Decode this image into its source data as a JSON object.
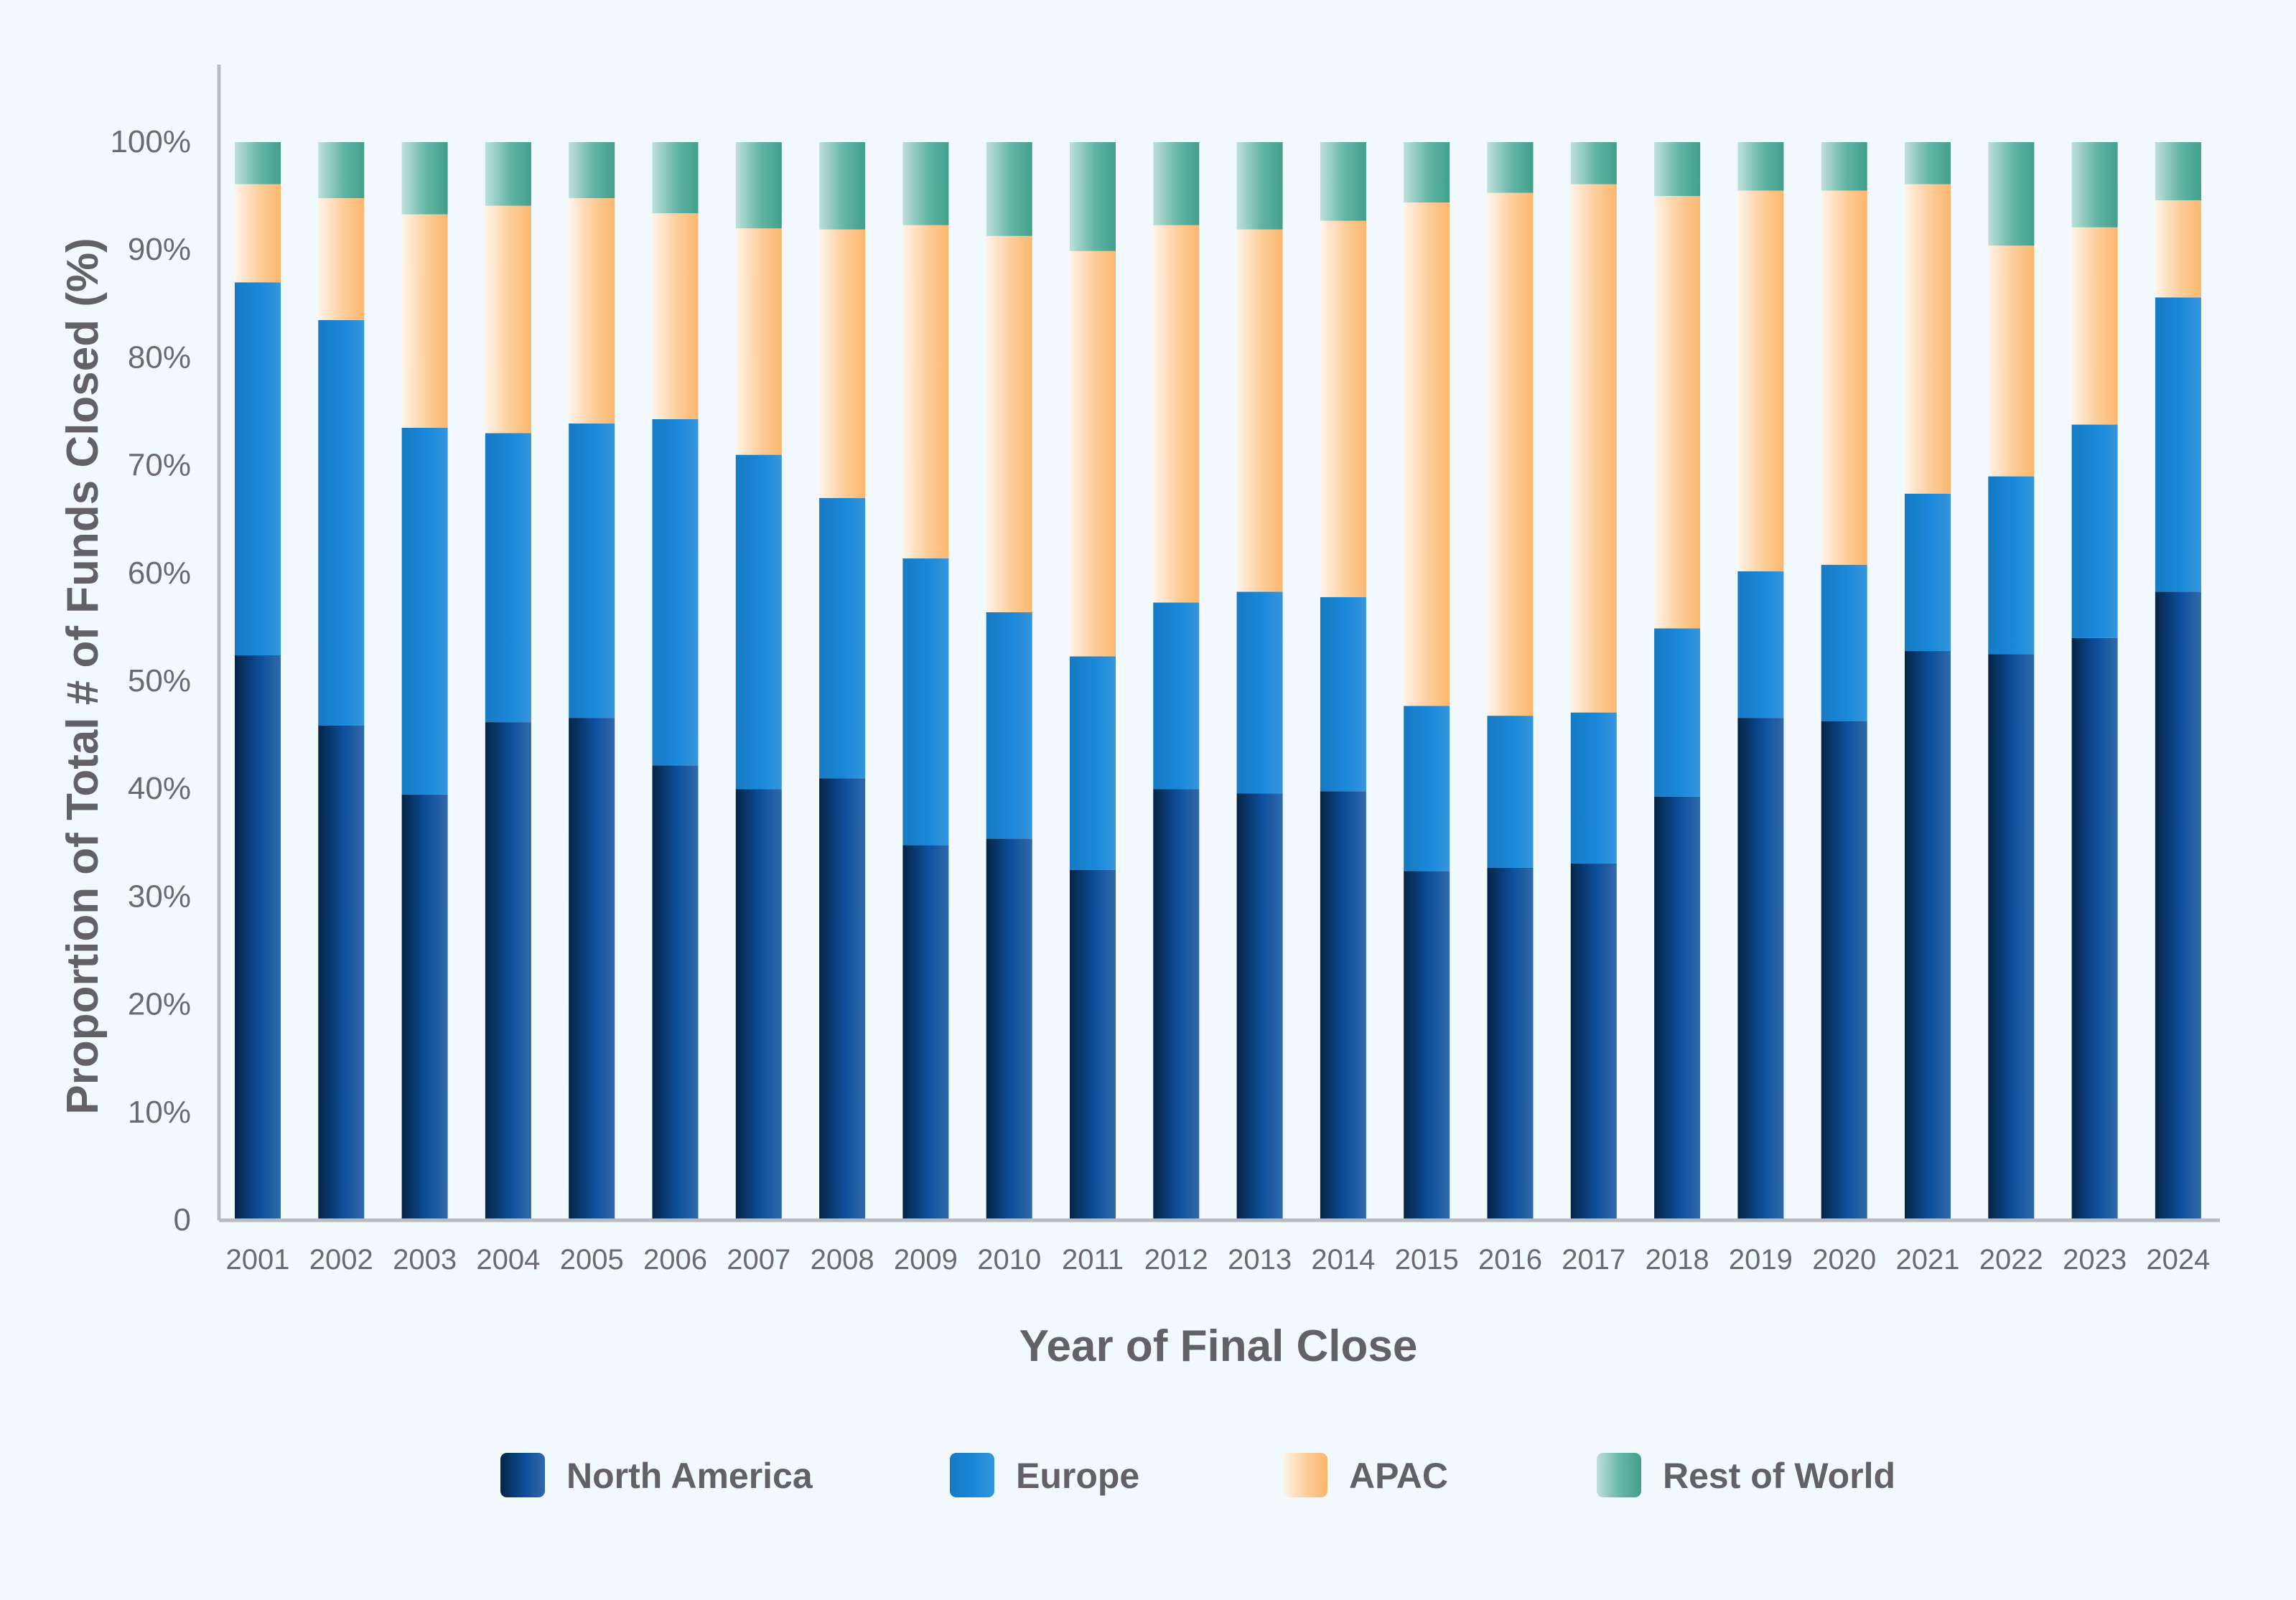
{
  "chart_data": {
    "type": "bar",
    "stacked": true,
    "title": "",
    "xlabel": "Year of Final Close",
    "ylabel": "Proportion of Total # of Funds Closed (%)",
    "ylim": [
      0,
      100
    ],
    "ytick_labels": [
      "0",
      "10%",
      "20%",
      "30%",
      "40%",
      "50%",
      "60%",
      "70%",
      "80%",
      "90%",
      "100%"
    ],
    "grid": false,
    "legend_position": "bottom",
    "categories": [
      "2001",
      "2002",
      "2003",
      "2004",
      "2005",
      "2006",
      "2007",
      "2008",
      "2009",
      "2010",
      "2011",
      "2012",
      "2013",
      "2014",
      "2015",
      "2016",
      "2017",
      "2018",
      "2019",
      "2020",
      "2021",
      "2022",
      "2023",
      "2024"
    ],
    "series": [
      {
        "name": "North America",
        "color": "#0d4f9c",
        "values": [
          52.4,
          45.9,
          39.5,
          46.2,
          46.6,
          42.2,
          40.0,
          41.0,
          34.8,
          35.4,
          32.5,
          40.0,
          39.6,
          39.8,
          32.4,
          32.7,
          33.1,
          39.3,
          46.6,
          46.3,
          52.8,
          52.5,
          54.0,
          58.3
        ]
      },
      {
        "name": "Europe",
        "color": "#1a88d9",
        "values": [
          34.6,
          37.6,
          34.0,
          26.8,
          27.3,
          32.1,
          31.0,
          26.0,
          26.6,
          21.0,
          19.8,
          17.3,
          18.7,
          18.0,
          15.3,
          14.1,
          14.0,
          15.6,
          13.6,
          14.5,
          14.6,
          16.5,
          19.8,
          27.3
        ]
      },
      {
        "name": "APAC",
        "color": "#fcb76e",
        "values": [
          9.1,
          11.3,
          19.8,
          21.1,
          20.9,
          19.1,
          21.0,
          24.9,
          30.9,
          34.9,
          37.6,
          35.0,
          33.6,
          34.9,
          46.7,
          48.5,
          49.0,
          40.1,
          35.3,
          34.7,
          28.7,
          21.4,
          18.3,
          9.0
        ]
      },
      {
        "name": "Rest of World",
        "color": "#46a794",
        "values": [
          3.9,
          5.2,
          6.7,
          5.9,
          5.2,
          6.6,
          8.0,
          8.1,
          7.7,
          8.7,
          10.1,
          7.7,
          8.1,
          7.3,
          5.6,
          4.7,
          3.9,
          5.0,
          4.5,
          4.5,
          3.9,
          9.6,
          7.9,
          5.4
        ]
      }
    ]
  }
}
